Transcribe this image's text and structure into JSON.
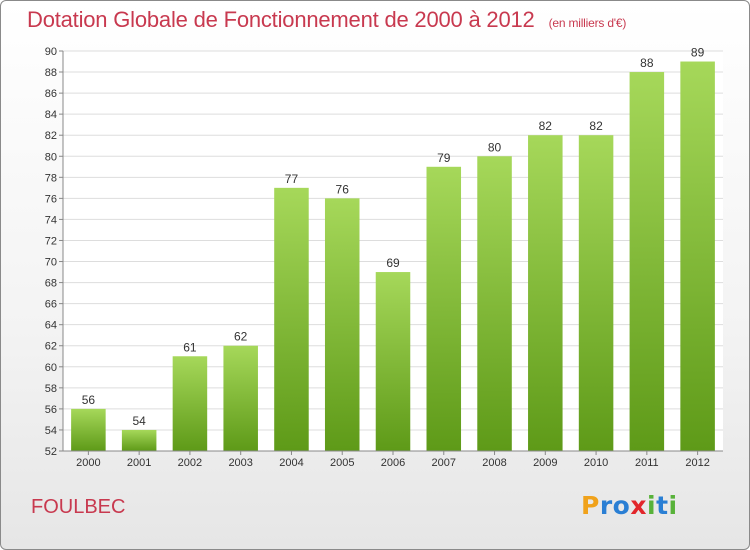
{
  "title": "Dotation Globale de Fonctionnement de 2000 à 2012",
  "subtitle": "(en milliers d'€)",
  "city": "FOULBEC",
  "logo": {
    "letters": [
      "P",
      "r",
      "o",
      "x",
      "i",
      "t",
      "i"
    ],
    "colors": [
      "#f0a21b",
      "#2a7fd4",
      "#2a7fd4",
      "#e2262b",
      "#58b23a",
      "#2a7fd4",
      "#58b23a"
    ]
  },
  "colors": {
    "bar_top": "#a6d85a",
    "bar_bottom": "#5e9a18",
    "title": "#c8394f"
  },
  "chart_data": {
    "type": "bar",
    "categories": [
      "2000",
      "2001",
      "2002",
      "2003",
      "2004",
      "2005",
      "2006",
      "2007",
      "2008",
      "2009",
      "2010",
      "2011",
      "2012"
    ],
    "values": [
      56,
      54,
      61,
      62,
      77,
      76,
      69,
      79,
      80,
      82,
      82,
      88,
      89
    ],
    "ylim": [
      52,
      90
    ],
    "yticks": [
      52,
      54,
      56,
      58,
      60,
      62,
      64,
      66,
      68,
      70,
      72,
      74,
      76,
      78,
      80,
      82,
      84,
      86,
      88,
      90
    ],
    "grid": true,
    "data_labels": true
  }
}
